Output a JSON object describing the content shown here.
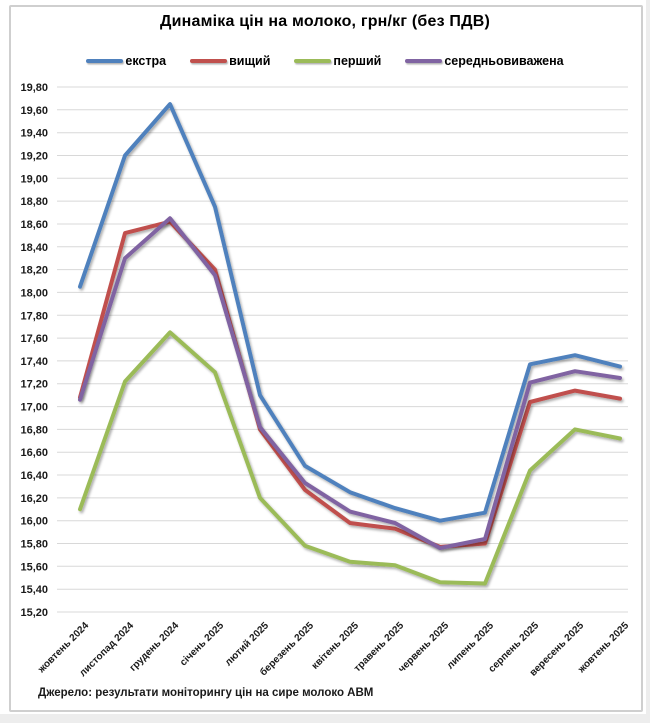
{
  "title": "Динаміка цін на молоко, грн/кг (без ПДВ)",
  "source": "Джерело: результати моніторингу цін на сире молоко АВМ",
  "chart_data": {
    "type": "line",
    "title": "Динаміка цін на молоко, грн/кг (без ПДВ)",
    "xlabel": "",
    "ylabel": "грн/кг (без ПДВ)",
    "grid": true,
    "legend_position": "top",
    "decimal_separator": ",",
    "ylim": [
      15.2,
      19.8
    ],
    "ytick_step": 0.2,
    "yticks_labels": [
      "19,80",
      "19,60",
      "19,40",
      "19,20",
      "19,00",
      "18,80",
      "18,60",
      "18,40",
      "18,20",
      "18,00",
      "17,80",
      "17,60",
      "17,40",
      "17,20",
      "17,00",
      "16,80",
      "16,60",
      "16,40",
      "16,20",
      "16,00",
      "15,80",
      "15,60",
      "15,40",
      "15,20"
    ],
    "categories": [
      "жовтень 2024",
      "листопад 2024",
      "грудень 2024",
      "січень 2025",
      "лютий 2025",
      "березень 2025",
      "квітень 2025",
      "травень 2025",
      "червень 2025",
      "липень 2025",
      "серпень 2025",
      "вересень 2025",
      "жовтень 2025"
    ],
    "series": [
      {
        "name": "екстра",
        "color": "#4F81BD",
        "values": [
          18.05,
          19.2,
          19.65,
          18.75,
          17.1,
          16.48,
          16.25,
          16.11,
          16.0,
          16.07,
          17.37,
          17.45,
          17.35
        ]
      },
      {
        "name": "вищий",
        "color": "#C0504D",
        "values": [
          17.08,
          18.52,
          18.62,
          18.2,
          16.8,
          16.27,
          15.98,
          15.93,
          15.77,
          15.8,
          17.04,
          17.14,
          17.07
        ]
      },
      {
        "name": "перший",
        "color": "#9BBB59",
        "values": [
          16.1,
          17.22,
          17.65,
          17.3,
          16.2,
          15.78,
          15.64,
          15.61,
          15.46,
          15.45,
          16.44,
          16.8,
          16.72
        ]
      },
      {
        "name": "середньовиважена",
        "color": "#8064A2",
        "values": [
          17.06,
          18.3,
          18.65,
          18.15,
          16.82,
          16.33,
          16.08,
          15.98,
          15.76,
          15.84,
          17.21,
          17.31,
          17.25
        ]
      }
    ]
  }
}
